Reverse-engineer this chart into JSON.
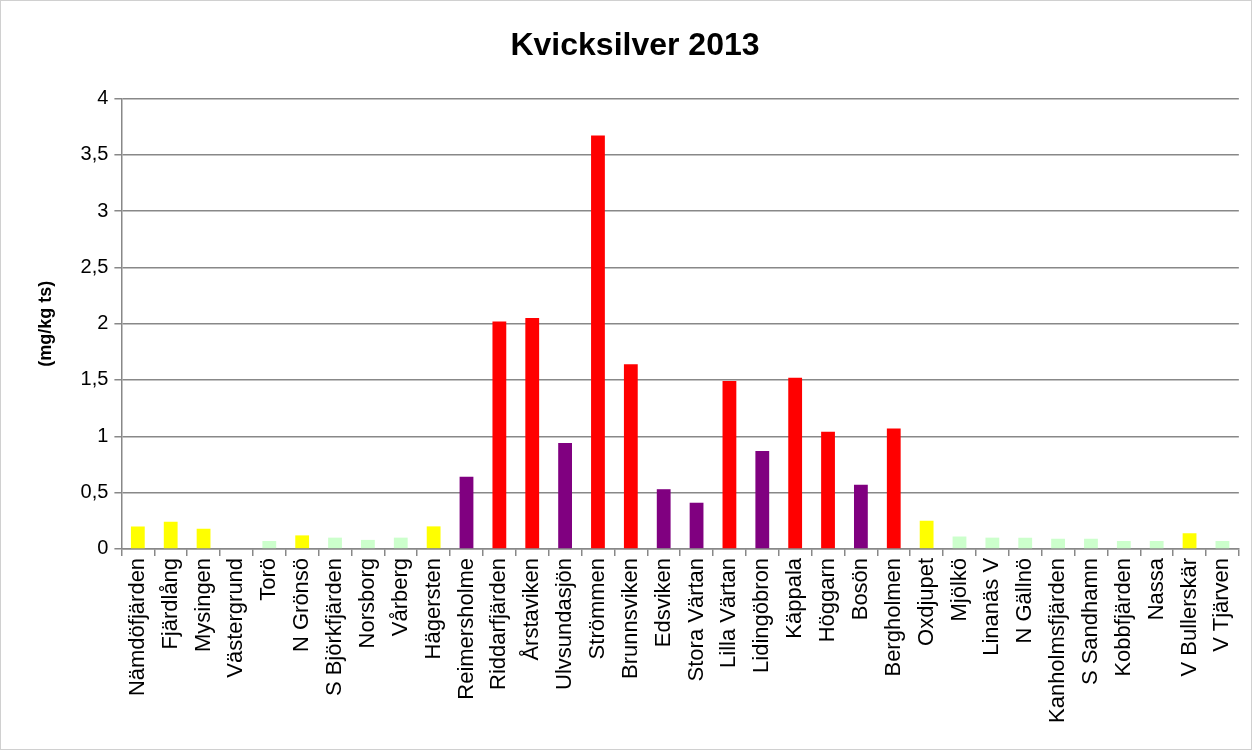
{
  "chart_data": {
    "type": "bar",
    "title": "Kvicksilver 2013",
    "ylabel": "(mg/kg ts)",
    "categories": [
      "Nämdöfjärden",
      "Fjärdlång",
      "Mysingen",
      "Västergrund",
      "Torö",
      "N Grönsö",
      "S Björkfjärden",
      "Norsborg",
      "Vårberg",
      "Hägersten",
      "Reimersholme",
      "Riddarfjärden",
      "Årstaviken",
      "Ulvsundasjön",
      "Strömmen",
      "Brunnsviken",
      "Edsviken",
      "Stora Värtan",
      "Lilla Värtan",
      "Lidingöbron",
      "Käppala",
      "Höggarn",
      "Bosön",
      "Bergholmen",
      "Oxdjupet",
      "Mjölkö",
      "Linanäs V",
      "N Gällnö",
      "Kanholmsfjärden",
      "S Sandhamn",
      "Kobbfjärden",
      "Nassa",
      "V Bullerskär",
      "V Tjärven"
    ],
    "values": [
      0.2,
      0.24,
      0.18,
      null,
      0.07,
      0.12,
      0.1,
      0.08,
      0.1,
      0.2,
      0.64,
      2.02,
      2.05,
      0.94,
      3.67,
      1.64,
      0.53,
      0.41,
      1.49,
      0.87,
      1.52,
      1.04,
      0.57,
      1.07,
      0.25,
      0.11,
      0.1,
      0.1,
      0.09,
      0.09,
      0.07,
      0.07,
      0.14,
      0.07
    ],
    "colors": [
      "#ffff00",
      "#ffff00",
      "#ffff00",
      "#ccffcc",
      "#ccffcc",
      "#ffff00",
      "#ccffcc",
      "#ccffcc",
      "#ccffcc",
      "#ffff00",
      "#800080",
      "#ff0000",
      "#ff0000",
      "#800080",
      "#ff0000",
      "#ff0000",
      "#800080",
      "#800080",
      "#ff0000",
      "#800080",
      "#ff0000",
      "#ff0000",
      "#800080",
      "#ff0000",
      "#ffff00",
      "#ccffcc",
      "#ccffcc",
      "#ccffcc",
      "#ccffcc",
      "#ccffcc",
      "#ccffcc",
      "#ccffcc",
      "#ffff00",
      "#ccffcc"
    ],
    "ylim": [
      0,
      4
    ],
    "yticks": [
      0,
      {
        "value": 0.5,
        "label": "0,5"
      },
      1,
      {
        "value": 1.5,
        "label": "1,5"
      },
      2,
      {
        "value": 2.5,
        "label": "2,5"
      },
      3,
      {
        "value": 3.5,
        "label": "3,5"
      },
      4
    ],
    "grid": "y"
  }
}
